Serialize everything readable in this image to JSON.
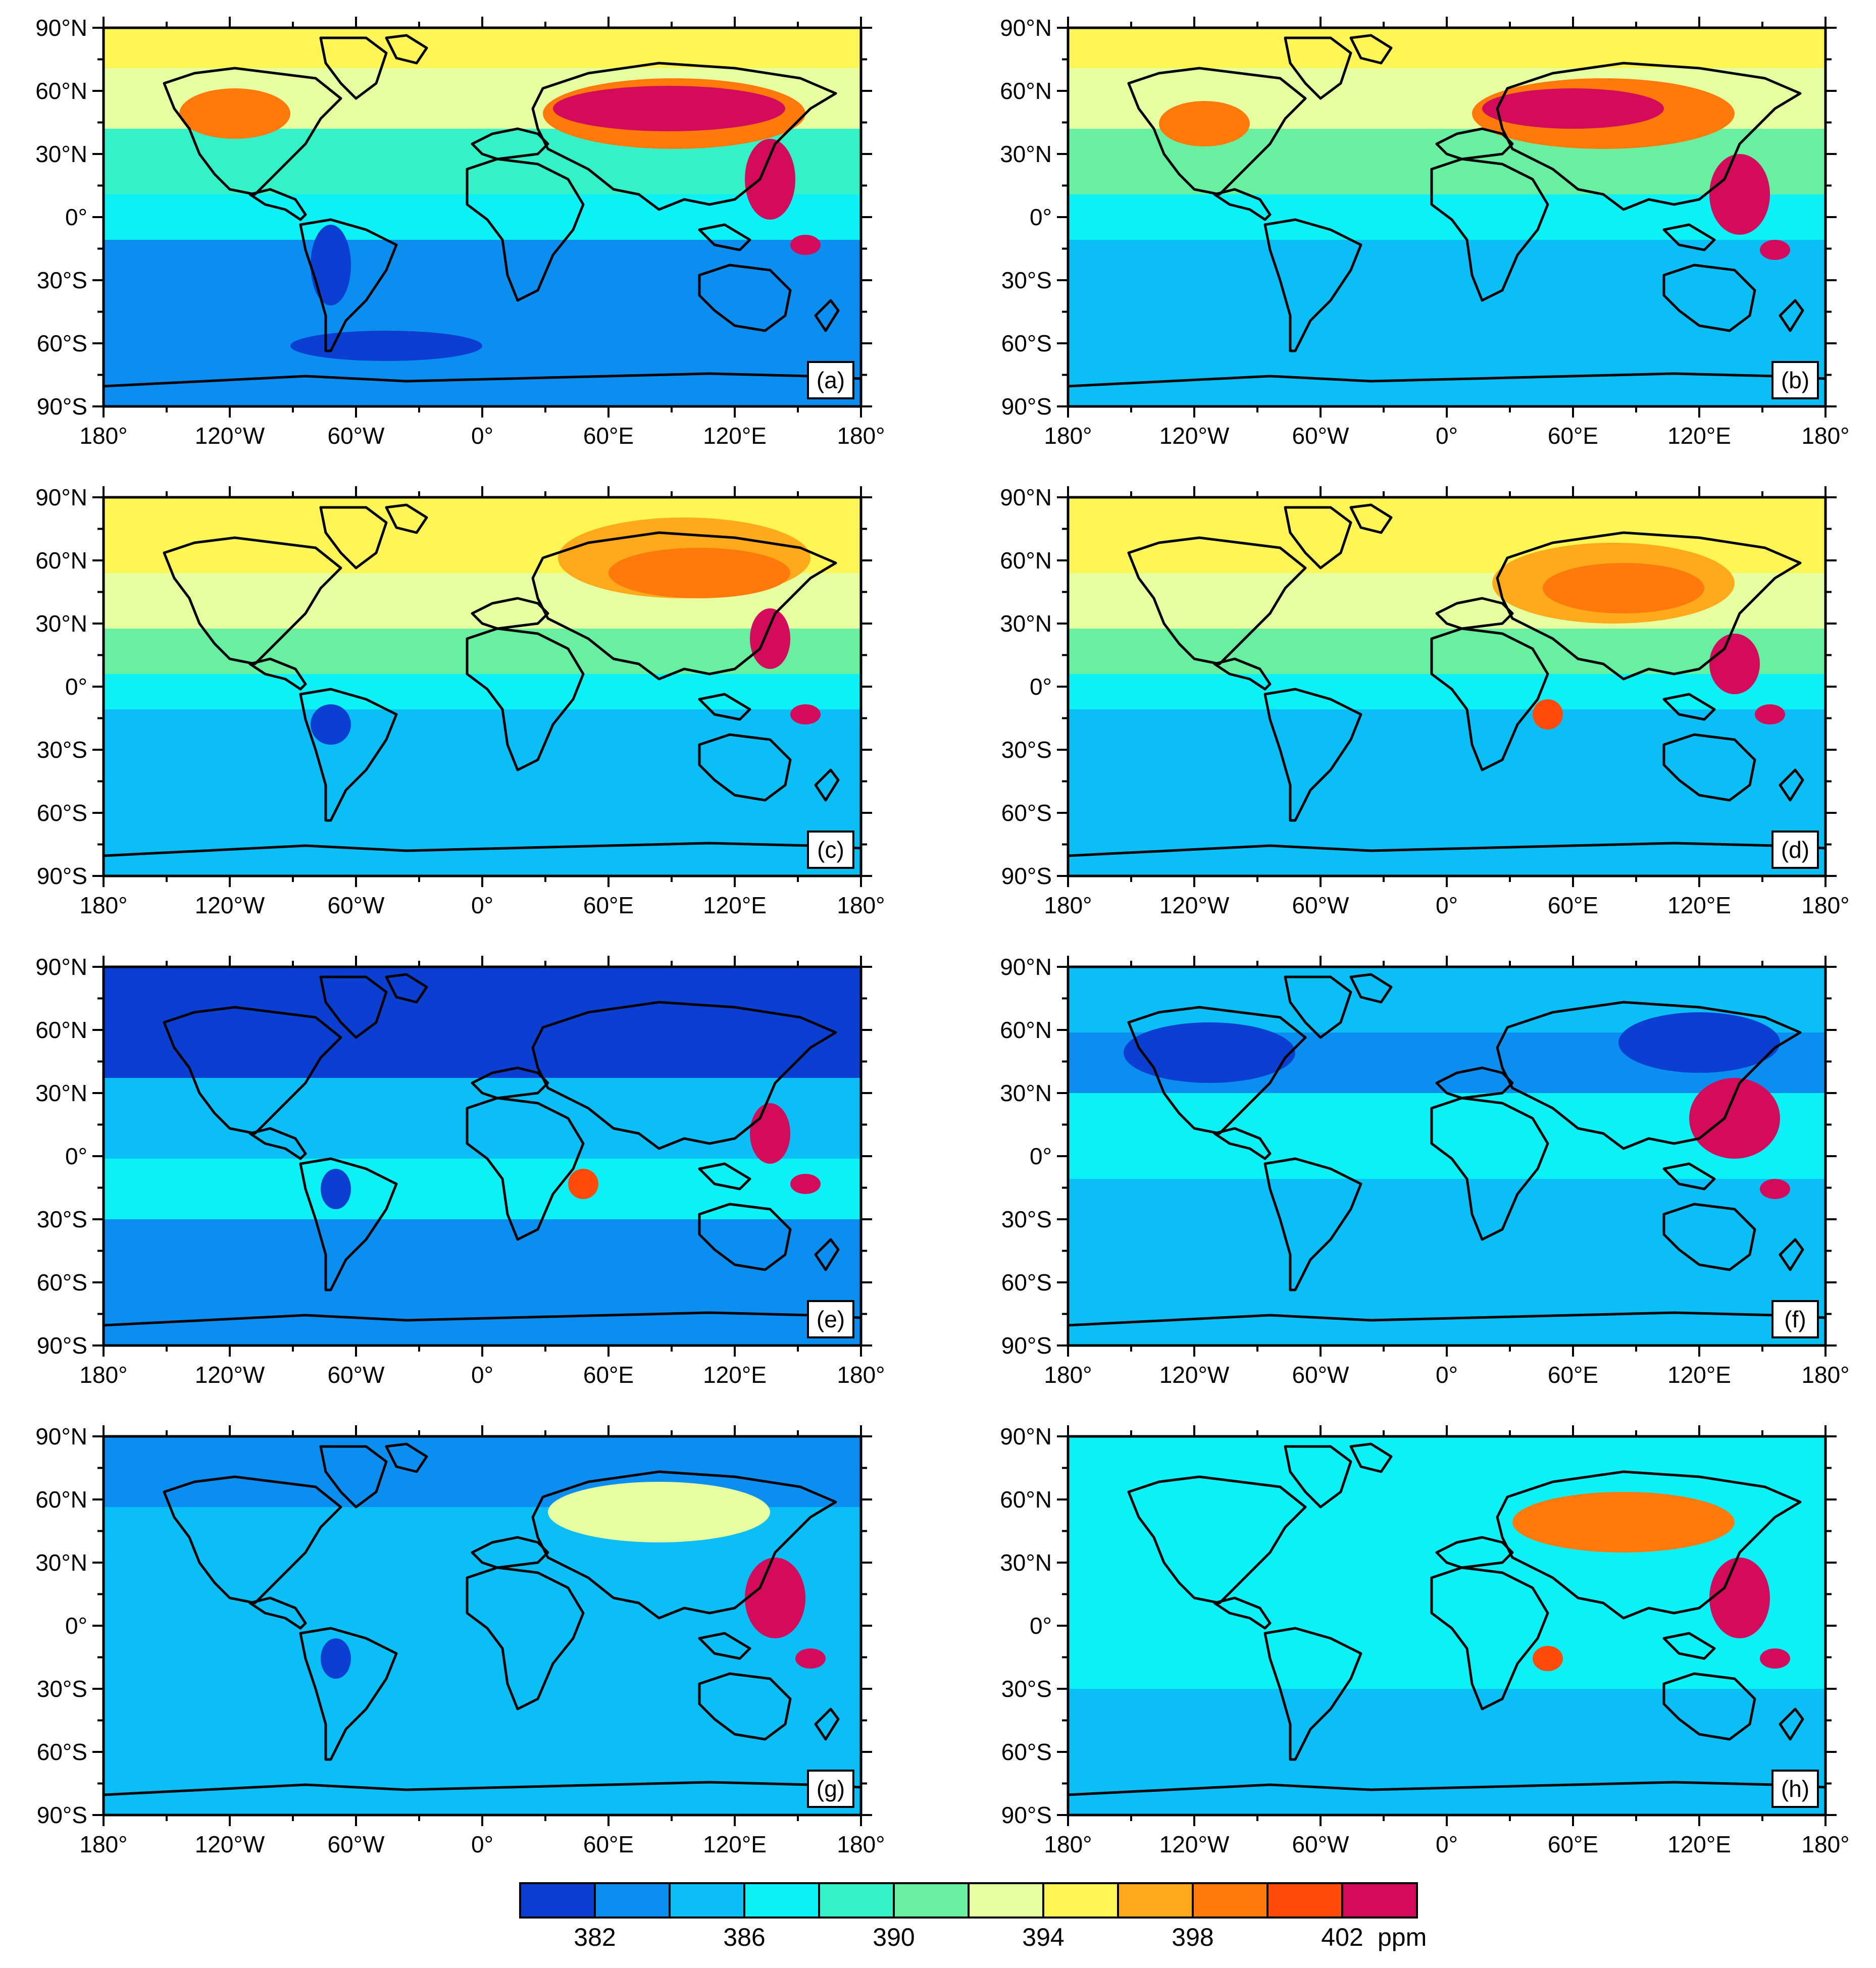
{
  "figure": {
    "panels": [
      {
        "label": "(a)",
        "lat_labels": [
          "90°N",
          "60°N",
          "30°N",
          "0°",
          "30°S",
          "60°S",
          "90°S"
        ],
        "lon_labels": [
          "180°",
          "120°W",
          "60°W",
          "0°",
          "60°E",
          "120°E",
          "180°"
        ]
      },
      {
        "label": "(b)",
        "lat_labels": [
          "90°N",
          "60°N",
          "30°N",
          "0°",
          "30°S",
          "60°S",
          "90°S"
        ],
        "lon_labels": [
          "180°",
          "120°W",
          "60°W",
          "0°",
          "60°E",
          "120°E",
          "180°"
        ]
      },
      {
        "label": "(c)",
        "lat_labels": [
          "90°N",
          "60°N",
          "30°N",
          "0°",
          "30°S",
          "60°S",
          "90°S"
        ],
        "lon_labels": [
          "180°",
          "120°W",
          "60°W",
          "0°",
          "60°E",
          "120°E",
          "180°"
        ]
      },
      {
        "label": "(d)",
        "lat_labels": [
          "90°N",
          "60°N",
          "30°N",
          "0°",
          "30°S",
          "60°S",
          "90°S"
        ],
        "lon_labels": [
          "180°",
          "120°W",
          "60°W",
          "0°",
          "60°E",
          "120°E",
          "180°"
        ]
      },
      {
        "label": "(e)",
        "lat_labels": [
          "90°N",
          "60°N",
          "30°N",
          "0°",
          "30°S",
          "60°S",
          "90°S"
        ],
        "lon_labels": [
          "180°",
          "120°W",
          "60°W",
          "0°",
          "60°E",
          "120°E",
          "180°"
        ]
      },
      {
        "label": "(f)",
        "lat_labels": [
          "90°N",
          "60°N",
          "30°N",
          "0°",
          "30°S",
          "60°S",
          "90°S"
        ],
        "lon_labels": [
          "180°",
          "120°W",
          "60°W",
          "0°",
          "60°E",
          "120°E",
          "180°"
        ]
      },
      {
        "label": "(g)",
        "lat_labels": [
          "90°N",
          "60°N",
          "30°N",
          "0°",
          "30°S",
          "60°S",
          "90°S"
        ],
        "lon_labels": [
          "180°",
          "120°W",
          "60°W",
          "0°",
          "60°E",
          "120°E",
          "180°"
        ]
      },
      {
        "label": "(h)",
        "lat_labels": [
          "90°N",
          "60°N",
          "30°N",
          "0°",
          "30°S",
          "60°S",
          "90°S"
        ],
        "lon_labels": [
          "180°",
          "120°W",
          "60°W",
          "0°",
          "60°E",
          "120°E",
          "180°"
        ]
      }
    ]
  },
  "colorbar": {
    "colors": [
      "#0a3fd1",
      "#0a8ff0",
      "#0abff5",
      "#0af2f5",
      "#33f2c8",
      "#66f0a0",
      "#e6ffa0",
      "#fff555",
      "#ffaa1a",
      "#ff7a0a",
      "#ff4a0a",
      "#d40a5a"
    ],
    "tick_labels": [
      "382",
      "386",
      "390",
      "394",
      "398",
      "402"
    ],
    "unit": "ppm"
  }
}
